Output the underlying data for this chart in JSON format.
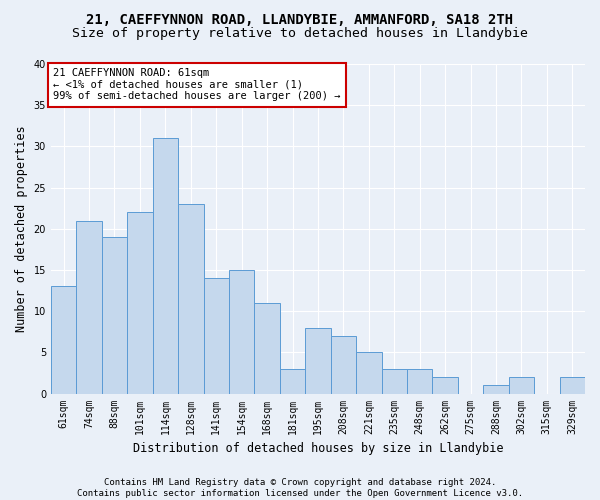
{
  "title": "21, CAEFFYNNON ROAD, LLANDYBIE, AMMANFORD, SA18 2TH",
  "subtitle": "Size of property relative to detached houses in Llandybie",
  "xlabel": "Distribution of detached houses by size in Llandybie",
  "ylabel": "Number of detached properties",
  "footer_line1": "Contains HM Land Registry data © Crown copyright and database right 2024.",
  "footer_line2": "Contains public sector information licensed under the Open Government Licence v3.0.",
  "categories": [
    "61sqm",
    "74sqm",
    "88sqm",
    "101sqm",
    "114sqm",
    "128sqm",
    "141sqm",
    "154sqm",
    "168sqm",
    "181sqm",
    "195sqm",
    "208sqm",
    "221sqm",
    "235sqm",
    "248sqm",
    "262sqm",
    "275sqm",
    "288sqm",
    "302sqm",
    "315sqm",
    "329sqm"
  ],
  "values": [
    13,
    21,
    19,
    22,
    31,
    23,
    14,
    15,
    11,
    3,
    8,
    7,
    5,
    3,
    3,
    2,
    0,
    1,
    2,
    0,
    2
  ],
  "bar_color": "#c5d8ed",
  "bar_edge_color": "#5b9bd5",
  "ylim": [
    0,
    40
  ],
  "yticks": [
    0,
    5,
    10,
    15,
    20,
    25,
    30,
    35,
    40
  ],
  "annotation_text_line1": "21 CAEFFYNNON ROAD: 61sqm",
  "annotation_text_line2": "← <1% of detached houses are smaller (1)",
  "annotation_text_line3": "99% of semi-detached houses are larger (200) →",
  "annotation_box_facecolor": "#ffffff",
  "annotation_box_edgecolor": "#cc0000",
  "bg_color": "#eaf0f8",
  "grid_color": "#ffffff",
  "title_fontsize": 10,
  "subtitle_fontsize": 9.5,
  "axis_label_fontsize": 8.5,
  "tick_fontsize": 7,
  "annotation_fontsize": 7.5,
  "footer_fontsize": 6.5
}
